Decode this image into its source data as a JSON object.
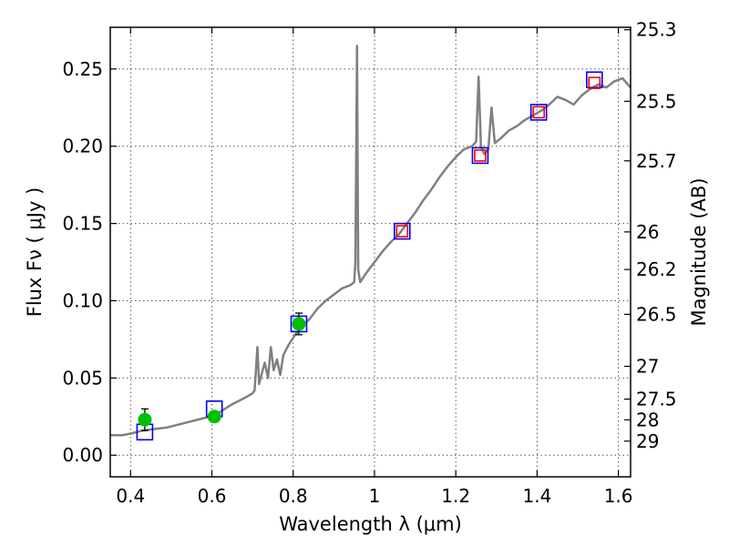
{
  "chart_data": {
    "type": "scatter",
    "title": "",
    "xlabel": "Wavelength  λ (μm)",
    "ylabel": "Flux  Fν  ( μJy )",
    "ylabel_right": "Magnitude (AB)",
    "xlim": [
      0.35,
      1.63
    ],
    "ylim": [
      -0.014,
      0.277
    ],
    "grid": true,
    "legend": "none",
    "x_ticks": [
      {
        "value": 0.4,
        "label": "0.4"
      },
      {
        "value": 0.6,
        "label": "0.6"
      },
      {
        "value": 0.8,
        "label": "0.8"
      },
      {
        "value": 1.0,
        "label": "1"
      },
      {
        "value": 1.2,
        "label": "1.2"
      },
      {
        "value": 1.4,
        "label": "1.4"
      },
      {
        "value": 1.6,
        "label": "1.6"
      }
    ],
    "y_ticks": [
      {
        "value": 0.0,
        "label": "0.00"
      },
      {
        "value": 0.05,
        "label": "0.05"
      },
      {
        "value": 0.1,
        "label": "0.10"
      },
      {
        "value": 0.15,
        "label": "0.15"
      },
      {
        "value": 0.2,
        "label": "0.20"
      },
      {
        "value": 0.25,
        "label": "0.25"
      }
    ],
    "mag_ticks": [
      {
        "mag": 25.3,
        "label": "25.3"
      },
      {
        "mag": 25.5,
        "label": "25.5"
      },
      {
        "mag": 25.7,
        "label": "25.7"
      },
      {
        "mag": 26.0,
        "label": "26"
      },
      {
        "mag": 26.2,
        "label": "26.2"
      },
      {
        "mag": 26.5,
        "label": "26.5"
      },
      {
        "mag": 27.0,
        "label": "27"
      },
      {
        "mag": 27.5,
        "label": "27.5"
      },
      {
        "mag": 28.0,
        "label": "28"
      },
      {
        "mag": 29.0,
        "label": "29"
      }
    ],
    "series": [
      {
        "kind": "model_spectrum",
        "color": "#808080",
        "points": [
          [
            0.35,
            0.013
          ],
          [
            0.38,
            0.013
          ],
          [
            0.4,
            0.014
          ],
          [
            0.43,
            0.016
          ],
          [
            0.46,
            0.017
          ],
          [
            0.49,
            0.018
          ],
          [
            0.52,
            0.02
          ],
          [
            0.55,
            0.022
          ],
          [
            0.58,
            0.024
          ],
          [
            0.6,
            0.025
          ],
          [
            0.62,
            0.028
          ],
          [
            0.65,
            0.033
          ],
          [
            0.68,
            0.037
          ],
          [
            0.7,
            0.04
          ],
          [
            0.705,
            0.042
          ],
          [
            0.712,
            0.07
          ],
          [
            0.716,
            0.046
          ],
          [
            0.722,
            0.052
          ],
          [
            0.73,
            0.06
          ],
          [
            0.738,
            0.05
          ],
          [
            0.745,
            0.07
          ],
          [
            0.752,
            0.055
          ],
          [
            0.76,
            0.062
          ],
          [
            0.768,
            0.052
          ],
          [
            0.776,
            0.065
          ],
          [
            0.79,
            0.072
          ],
          [
            0.805,
            0.078
          ],
          [
            0.82,
            0.083
          ],
          [
            0.84,
            0.088
          ],
          [
            0.86,
            0.095
          ],
          [
            0.88,
            0.1
          ],
          [
            0.9,
            0.104
          ],
          [
            0.92,
            0.108
          ],
          [
            0.94,
            0.11
          ],
          [
            0.95,
            0.112
          ],
          [
            0.953,
            0.125
          ],
          [
            0.957,
            0.265
          ],
          [
            0.96,
            0.12
          ],
          [
            0.965,
            0.112
          ],
          [
            0.98,
            0.118
          ],
          [
            1.0,
            0.125
          ],
          [
            1.02,
            0.132
          ],
          [
            1.04,
            0.138
          ],
          [
            1.06,
            0.143
          ],
          [
            1.08,
            0.15
          ],
          [
            1.1,
            0.157
          ],
          [
            1.12,
            0.165
          ],
          [
            1.14,
            0.172
          ],
          [
            1.16,
            0.18
          ],
          [
            1.18,
            0.187
          ],
          [
            1.2,
            0.193
          ],
          [
            1.22,
            0.198
          ],
          [
            1.24,
            0.2
          ],
          [
            1.25,
            0.203
          ],
          [
            1.256,
            0.245
          ],
          [
            1.262,
            0.2
          ],
          [
            1.27,
            0.195
          ],
          [
            1.28,
            0.198
          ],
          [
            1.288,
            0.225
          ],
          [
            1.296,
            0.202
          ],
          [
            1.31,
            0.205
          ],
          [
            1.33,
            0.21
          ],
          [
            1.35,
            0.213
          ],
          [
            1.37,
            0.217
          ],
          [
            1.39,
            0.22
          ],
          [
            1.41,
            0.223
          ],
          [
            1.43,
            0.227
          ],
          [
            1.45,
            0.232
          ],
          [
            1.47,
            0.23
          ],
          [
            1.49,
            0.227
          ],
          [
            1.51,
            0.233
          ],
          [
            1.53,
            0.237
          ],
          [
            1.55,
            0.24
          ],
          [
            1.57,
            0.238
          ],
          [
            1.59,
            0.242
          ],
          [
            1.61,
            0.244
          ],
          [
            1.63,
            0.238
          ]
        ]
      },
      {
        "kind": "model_photometry",
        "marker": "square",
        "color": "#0000ff",
        "points": [
          [
            0.435,
            0.015
          ],
          [
            0.606,
            0.03
          ],
          [
            0.814,
            0.085
          ],
          [
            1.068,
            0.145
          ],
          [
            1.26,
            0.194
          ],
          [
            1.404,
            0.222
          ],
          [
            1.541,
            0.243
          ]
        ]
      },
      {
        "kind": "observed_photometry",
        "marker": "square",
        "color": "#ff0000",
        "points": [
          [
            1.068,
            0.145
          ],
          [
            1.26,
            0.194
          ],
          [
            1.404,
            0.222
          ],
          [
            1.541,
            0.241
          ]
        ]
      },
      {
        "kind": "observed_photometry",
        "marker": "circle",
        "color": "#00c000",
        "points": [
          [
            0.435,
            0.023,
            0.007
          ],
          [
            0.606,
            0.025,
            0.003
          ],
          [
            0.814,
            0.085,
            0.007
          ]
        ]
      }
    ]
  }
}
